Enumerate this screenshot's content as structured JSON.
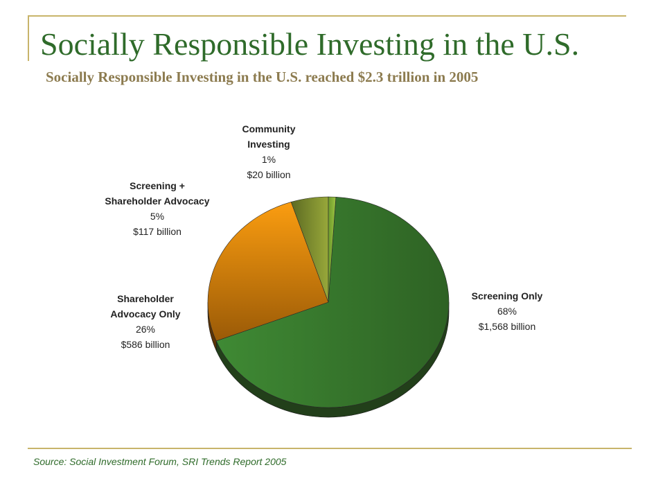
{
  "slide": {
    "title": "Socially Responsible Investing in the U.S.",
    "subtitle": "Socially Responsible Investing in the U.S. reached $2.3 trillion in 2005",
    "source": "Source: Social Investment Forum, SRI Trends Report 2005"
  },
  "chart_data": {
    "type": "pie",
    "start": "Community Investing at 12 o'clock, clockwise",
    "slices": [
      {
        "label_lines": [
          "Screening Only"
        ],
        "percent_text": "68%",
        "value_text": "$1,568 billion",
        "percent": 68,
        "value": 1568,
        "color": "#3a7d2e"
      },
      {
        "label_lines": [
          "Shareholder",
          "Advocacy Only"
        ],
        "percent_text": "26%",
        "value_text": "$586 billion",
        "percent": 26,
        "value": 586,
        "color": "#e98a0c"
      },
      {
        "label_lines": [
          "Screening +",
          "Shareholder Advocacy"
        ],
        "percent_text": "5%",
        "value_text": "$117 billion",
        "percent": 5,
        "value": 117,
        "color": "#7a8a2c"
      },
      {
        "label_lines": [
          "Community",
          "Investing"
        ],
        "percent_text": "1%",
        "value_text": "$20 billion",
        "percent": 1,
        "value": 20,
        "color": "#86b23a"
      }
    ]
  }
}
